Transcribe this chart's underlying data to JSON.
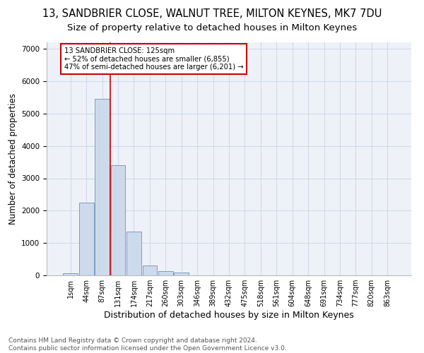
{
  "title": "13, SANDBRIER CLOSE, WALNUT TREE, MILTON KEYNES, MK7 7DU",
  "subtitle": "Size of property relative to detached houses in Milton Keynes",
  "xlabel": "Distribution of detached houses by size in Milton Keynes",
  "ylabel": "Number of detached properties",
  "footer_line1": "Contains HM Land Registry data © Crown copyright and database right 2024.",
  "footer_line2": "Contains public sector information licensed under the Open Government Licence v3.0.",
  "bar_labels": [
    "1sqm",
    "44sqm",
    "87sqm",
    "131sqm",
    "174sqm",
    "217sqm",
    "260sqm",
    "303sqm",
    "346sqm",
    "389sqm",
    "432sqm",
    "475sqm",
    "518sqm",
    "561sqm",
    "604sqm",
    "648sqm",
    "691sqm",
    "734sqm",
    "777sqm",
    "820sqm",
    "863sqm"
  ],
  "bar_values": [
    60,
    2250,
    5450,
    3400,
    1350,
    300,
    130,
    90,
    10,
    0,
    0,
    0,
    0,
    0,
    0,
    0,
    0,
    0,
    0,
    0,
    0
  ],
  "bar_color": "#ccdaeb",
  "bar_edge_color": "#7090b8",
  "vline_color": "#cc0000",
  "vline_x": 2.5,
  "annotation_box_text": "13 SANDBRIER CLOSE: 125sqm\n← 52% of detached houses are smaller (6,855)\n47% of semi-detached houses are larger (6,201) →",
  "ylim": [
    0,
    7200
  ],
  "yticks": [
    0,
    1000,
    2000,
    3000,
    4000,
    5000,
    6000,
    7000
  ],
  "grid_color": "#d0d8ea",
  "bg_color": "#eef2f8",
  "title_fontsize": 10.5,
  "subtitle_fontsize": 9.5,
  "ylabel_fontsize": 8.5,
  "xlabel_fontsize": 9,
  "tick_fontsize": 7,
  "footer_fontsize": 6.5
}
